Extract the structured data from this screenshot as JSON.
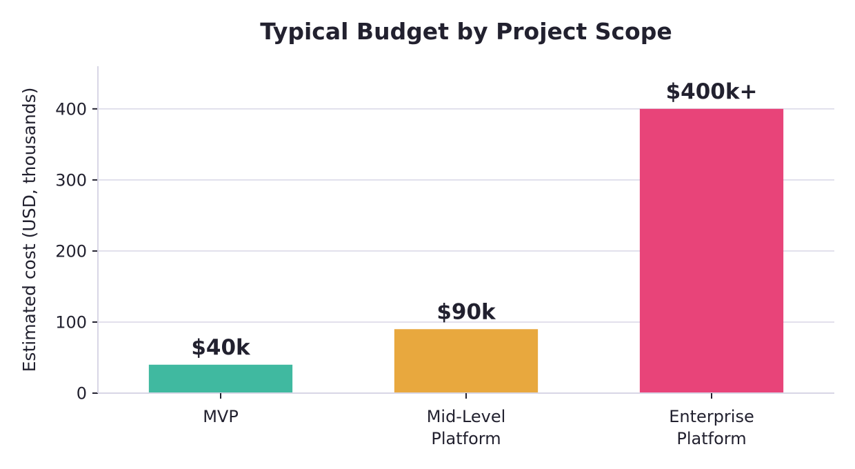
{
  "chart_data": {
    "type": "bar",
    "title": "Typical Budget by Project Scope",
    "xlabel": "",
    "ylabel": "Estimated cost (USD, thousands)",
    "categories": [
      [
        "MVP"
      ],
      [
        "Mid-Level",
        "Platform"
      ],
      [
        "Enterprise",
        "Platform"
      ]
    ],
    "values": [
      40,
      90,
      400
    ],
    "data_labels": [
      "$40k",
      "$90k",
      "$400k+"
    ],
    "colors": [
      "#40b9a0",
      "#e8a83e",
      "#e84479"
    ],
    "ylim": [
      0,
      460
    ],
    "yticks": [
      0,
      100,
      200,
      300,
      400
    ],
    "grid": true,
    "legend": "none"
  }
}
